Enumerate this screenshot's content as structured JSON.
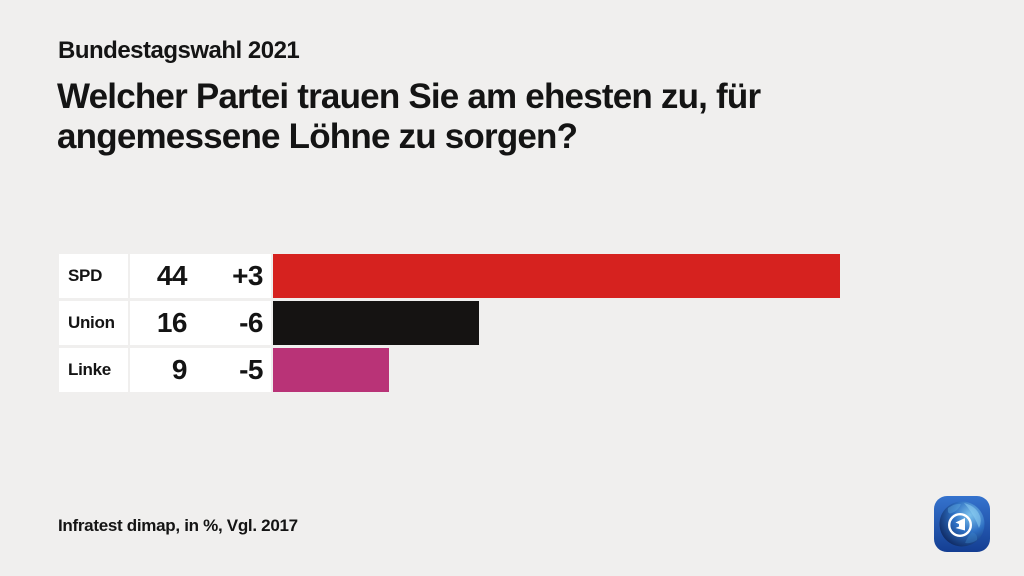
{
  "header": {
    "kicker": "Bundestagswahl 2021",
    "title_lines": [
      "Welcher Partei trauen Sie am ehesten zu, für",
      "angemessene Löhne zu sorgen?"
    ]
  },
  "chart_data": {
    "type": "bar",
    "orientation": "horizontal",
    "subtitle": "Bundestagswahl 2021",
    "title": "Welcher Partei trauen Sie am ehesten zu, für angemessene Löhne zu sorgen?",
    "unit": "%",
    "comparison": "Vgl. 2017",
    "categories": [
      "SPD",
      "Union",
      "Linke"
    ],
    "values": [
      44,
      16,
      9
    ],
    "changes": [
      "+3",
      "-6",
      "-5"
    ],
    "xlim": [
      0,
      44
    ],
    "grid": false,
    "legend": "none",
    "rows": [
      {
        "party": "SPD",
        "value": 44,
        "change": "+3",
        "color": "#d6221f"
      },
      {
        "party": "Union",
        "value": 16,
        "change": "-6",
        "color": "#151312"
      },
      {
        "party": "Linke",
        "value": 9,
        "change": "-5",
        "color": "#b93377"
      }
    ]
  },
  "footer": {
    "source": "Infratest dimap, in %, Vgl. 2017"
  },
  "logo": {
    "name": "tagesschau-globe"
  },
  "colors": {
    "background": "#f0efee",
    "cell_background": "#ffffff",
    "text": "#141414",
    "spd_red": "#d6221f",
    "union_black": "#151312",
    "linke_magenta": "#b93377"
  }
}
